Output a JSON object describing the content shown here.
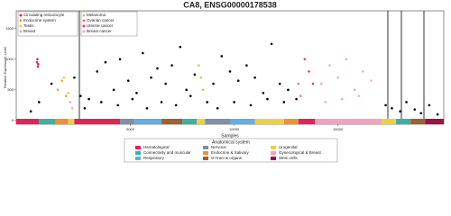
{
  "chart_data": {
    "type": "scatter",
    "title": "CA8, ENSG00000178538",
    "xlabel": "Samples",
    "ylabel": "Relative Expression Level",
    "xlim": [
      -500,
      20100
    ],
    "ylim": [
      -60,
      1790
    ],
    "xticks": [
      5000,
      10000,
      15000
    ],
    "yticks": [
      0,
      500,
      1000,
      1500
    ],
    "series": [
      {
        "color": "#000000",
        "x": [
          200,
          600,
          1200,
          2300,
          2600,
          3000,
          3400,
          3800,
          4200,
          4500,
          4900,
          5300,
          5600,
          6000,
          6300,
          6700,
          7000,
          7400,
          7700,
          8100,
          8700,
          9000,
          9400,
          9800,
          10200,
          10600,
          11000,
          11400,
          11800,
          12200,
          12600,
          13000,
          17300,
          17600,
          18000,
          18300,
          18700,
          19000,
          19400,
          19800,
          2800,
          3600,
          4400,
          5100,
          5800,
          6500,
          7200,
          7900,
          9200,
          10000,
          10800,
          11600,
          12400
        ],
        "values": [
          150,
          300,
          600,
          700,
          400,
          350,
          800,
          950,
          500,
          1000,
          650,
          450,
          1100,
          700,
          850,
          600,
          900,
          1200,
          500,
          750,
          300,
          600,
          1050,
          800,
          650,
          900,
          700,
          450,
          1250,
          600,
          500,
          350,
          250,
          200,
          150,
          300,
          180,
          120,
          250,
          100,
          200,
          300,
          250,
          350,
          200,
          300,
          250,
          400,
          200,
          300,
          250,
          350,
          300
        ]
      },
      {
        "name": "Circulating reticulocyte",
        "color": "#e0245a",
        "x": [
          500,
          520,
          540,
          560
        ],
        "values": [
          950,
          1000,
          880,
          920
        ]
      },
      {
        "name": "Endocrine system",
        "color": "#f0a030",
        "x": [
          1500,
          1700,
          1900
        ],
        "values": [
          500,
          650,
          400
        ]
      },
      {
        "name": "Testis",
        "color": "#e8d040",
        "x": [
          1800,
          2000
        ],
        "values": [
          700,
          450
        ]
      },
      {
        "name": "Breast",
        "color": "#f4a0c0",
        "x": [
          2100,
          2200
        ],
        "values": [
          300,
          200
        ]
      },
      {
        "name": "Melanoma",
        "color": "#c8d040",
        "x": [
          8300,
          8400,
          8500
        ],
        "values": [
          900,
          700,
          500
        ]
      },
      {
        "name": "Ovarian cancer",
        "color": "#e870a0",
        "x": [
          13100,
          13200
        ],
        "values": [
          600,
          400
        ]
      },
      {
        "name": "Uterine cancer",
        "color": "#e04060",
        "x": [
          13400,
          13600,
          13800
        ],
        "values": [
          1000,
          800,
          600
        ]
      },
      {
        "name": "Breast cancer",
        "color": "#f4a6c8",
        "x": [
          14200,
          14600,
          15000,
          15400,
          15800,
          16200,
          16600,
          14400,
          15200,
          16000
        ],
        "values": [
          600,
          900,
          700,
          1000,
          500,
          800,
          650,
          300,
          350,
          400
        ]
      }
    ],
    "legend_title": "Anatomical system",
    "systems": [
      {
        "name": "Hematological",
        "color": "#e0245a"
      },
      {
        "name": "Nervous",
        "color": "#8090a8"
      },
      {
        "name": "Urogenital",
        "color": "#f0d040"
      },
      {
        "name": "Connectivity and muscular",
        "color": "#40b0a0"
      },
      {
        "name": "Endocrine & Salivary",
        "color": "#f09030"
      },
      {
        "name": "Gynecological & Breast",
        "color": "#f4a0c0"
      },
      {
        "name": "Respiratory",
        "color": "#60b0e0"
      },
      {
        "name": "GI tract & organs",
        "color": "#a06030"
      },
      {
        "name": "Stem cells",
        "color": "#a01040"
      }
    ],
    "sample_bands": [
      {
        "x0": -500,
        "x1": 600,
        "system": 0
      },
      {
        "x0": 600,
        "x1": 1400,
        "system": 3
      },
      {
        "x0": 1400,
        "x1": 2000,
        "system": 4
      },
      {
        "x0": 2000,
        "x1": 2300,
        "system": 2
      },
      {
        "x0": 2300,
        "x1": 4500,
        "system": 0
      },
      {
        "x0": 4500,
        "x1": 5200,
        "system": 1
      },
      {
        "x0": 5200,
        "x1": 6500,
        "system": 6
      },
      {
        "x0": 6500,
        "x1": 7500,
        "system": 7
      },
      {
        "x0": 7500,
        "x1": 8200,
        "system": 3
      },
      {
        "x0": 8200,
        "x1": 8600,
        "system": 2
      },
      {
        "x0": 8600,
        "x1": 9800,
        "system": 1
      },
      {
        "x0": 9800,
        "x1": 11000,
        "system": 6
      },
      {
        "x0": 11000,
        "x1": 12400,
        "system": 2
      },
      {
        "x0": 12400,
        "x1": 13100,
        "system": 4
      },
      {
        "x0": 13100,
        "x1": 13900,
        "system": 0
      },
      {
        "x0": 13900,
        "x1": 17100,
        "system": 5
      },
      {
        "x0": 17100,
        "x1": 17800,
        "system": 2
      },
      {
        "x0": 17800,
        "x1": 18500,
        "system": 3
      },
      {
        "x0": 18500,
        "x1": 19200,
        "system": 7
      },
      {
        "x0": 19200,
        "x1": 20100,
        "system": 8
      }
    ]
  }
}
